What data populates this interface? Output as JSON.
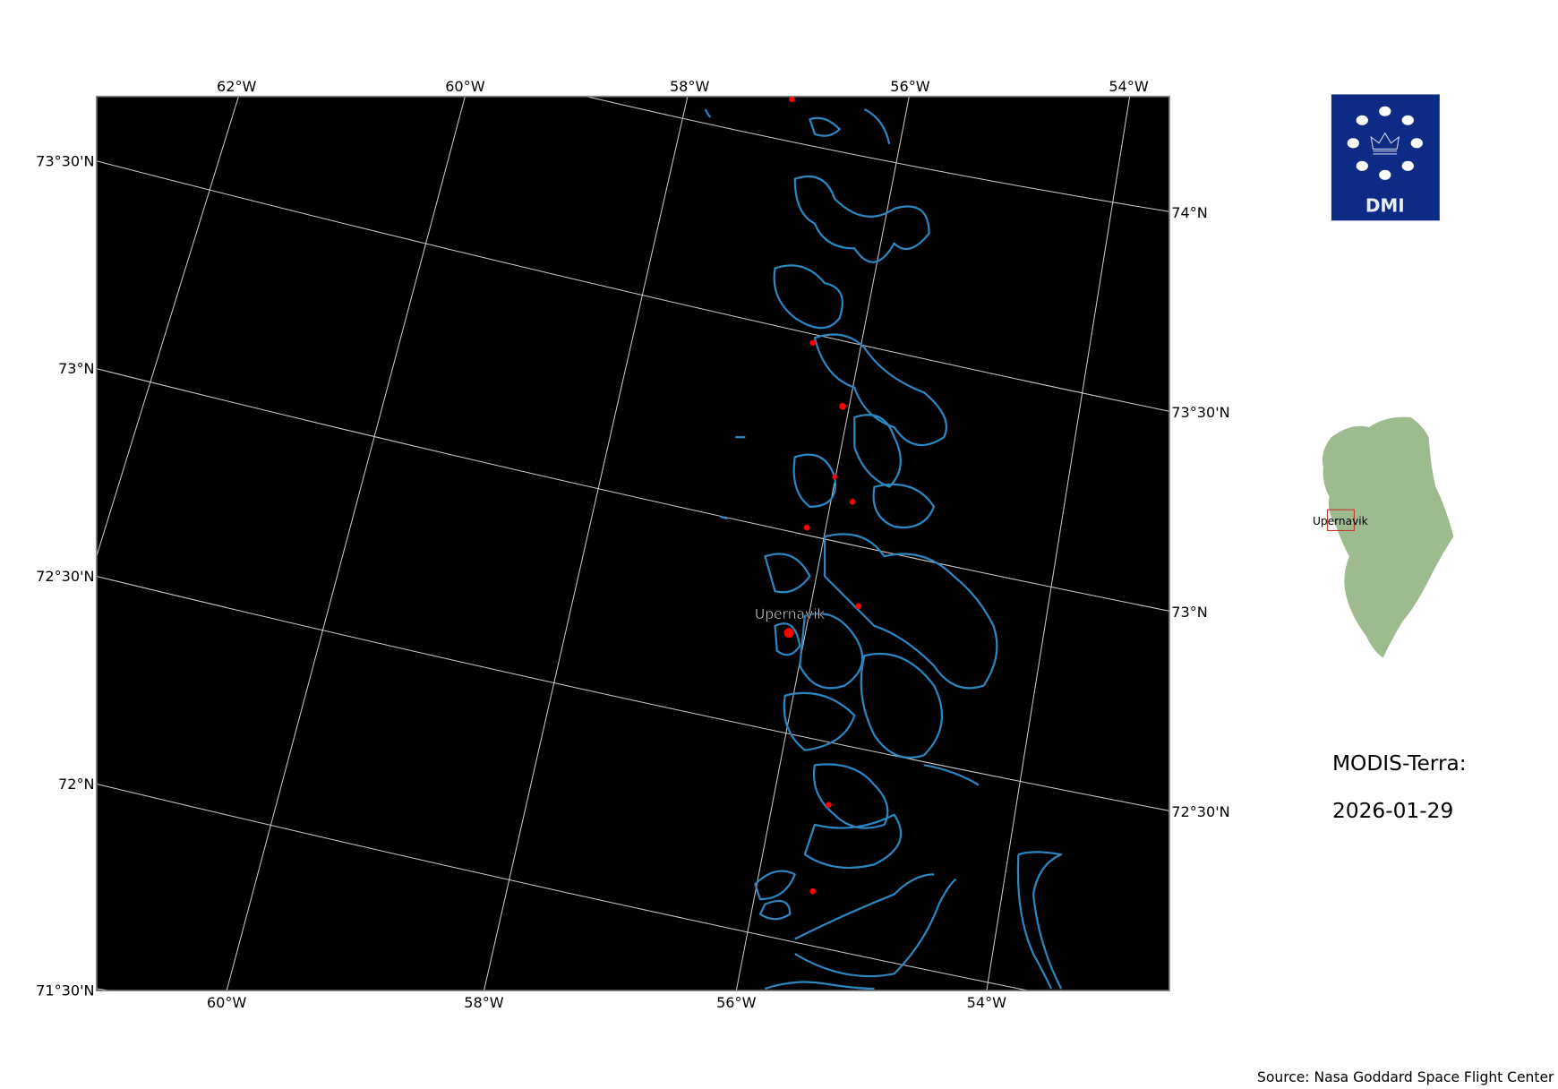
{
  "map": {
    "top_lon_labels": [
      "62°W",
      "60°W",
      "58°W",
      "56°W",
      "54°W"
    ],
    "bottom_lon_labels": [
      "60°W",
      "58°W",
      "56°W",
      "54°W"
    ],
    "left_lat_labels": [
      "73°30'N",
      "73°N",
      "72°30'N",
      "72°N",
      "71°30'N"
    ],
    "right_lat_labels": [
      "74°N",
      "73°30'N",
      "73°N",
      "72°30'N"
    ],
    "place_label": "Upernavik",
    "background_color": "#000000",
    "coastline_color": "#2e86c1",
    "settlement_color": "#ff0000"
  },
  "logo": {
    "text": "DMI",
    "color": "#0d2a84"
  },
  "inset": {
    "label": "Upernavik",
    "land_color": "#9dbb8f",
    "box_color": "#c0392b"
  },
  "title": {
    "line1": "MODIS-Terra:",
    "line2": "2026-01-29"
  },
  "source": "Source: Nasa Goddard Space Flight Center"
}
